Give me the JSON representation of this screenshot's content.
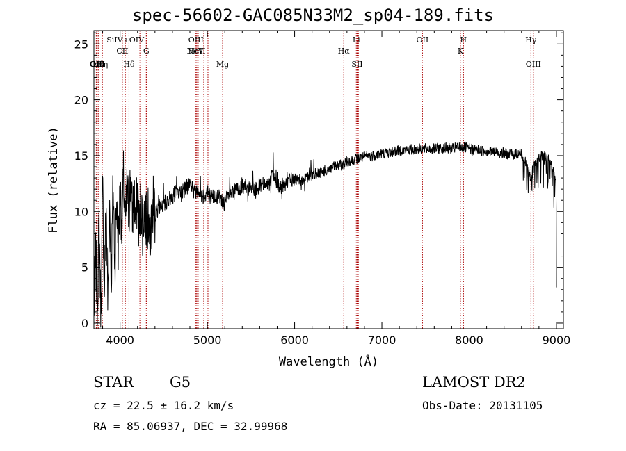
{
  "chart_data": {
    "type": "line",
    "title": "spec-56602-GAC085N33M2_sp04-189.fits",
    "xlabel": "Wavelength (Å)",
    "ylabel": "Flux (relative)",
    "xlim": [
      3700,
      9080
    ],
    "ylim": [
      -0.5,
      26.2
    ],
    "xticks": [
      4000,
      5000,
      6000,
      7000,
      8000,
      9000
    ],
    "yticks": [
      0,
      5,
      10,
      15,
      20,
      25
    ],
    "line_color": "#000000",
    "marker_color": "#aa0000",
    "series": [
      {
        "x": [
          3700,
          3720,
          3740,
          3760,
          3780,
          3800,
          3820,
          3840,
          3860,
          3880,
          3900,
          3920,
          3940,
          3960,
          3980,
          4000,
          4020,
          4040,
          4060,
          4080,
          4100,
          4120,
          4140,
          4160,
          4180,
          4200,
          4220,
          4240,
          4260,
          4280,
          4300,
          4320,
          4340,
          4400,
          4450,
          4500,
          4550,
          4600,
          4650,
          4700,
          4750,
          4800,
          4850,
          4900,
          4950,
          5000,
          5050,
          5100,
          5150,
          5200,
          5250,
          5300,
          5350,
          5400,
          5450,
          5500,
          5550,
          5600,
          5650,
          5700,
          5750,
          5800,
          5850,
          5900,
          5950,
          6000,
          6100,
          6200,
          6300,
          6400,
          6500,
          6560,
          6600,
          6700,
          6800,
          6900,
          7000,
          7100,
          7200,
          7300,
          7400,
          7500,
          7600,
          7700,
          7800,
          7900,
          8000,
          8100,
          8200,
          8300,
          8400,
          8500,
          8600,
          8660,
          8700,
          8750,
          8800,
          8850,
          8900,
          8950,
          9000
        ],
        "y": [
          1.0,
          6.0,
          2.0,
          9.0,
          0.5,
          12.0,
          3.0,
          11.0,
          1.5,
          10.5,
          4.0,
          12.5,
          5.5,
          11.0,
          7.0,
          12.0,
          9.0,
          13.0,
          8.5,
          12.0,
          10.0,
          12.8,
          9.5,
          11.5,
          9.0,
          12.0,
          8.0,
          11.2,
          8.5,
          10.5,
          9.0,
          9.5,
          8.0,
          9.8,
          10.5,
          10.6,
          11.0,
          11.4,
          11.8,
          11.6,
          12.0,
          12.6,
          11.8,
          12.0,
          11.4,
          11.8,
          11.2,
          11.5,
          11.0,
          10.8,
          11.5,
          11.8,
          12.0,
          12.2,
          11.9,
          12.3,
          12.0,
          12.4,
          12.6,
          12.2,
          13.4,
          12.3,
          12.0,
          12.6,
          12.8,
          12.9,
          12.8,
          13.3,
          13.5,
          13.8,
          14.1,
          14.2,
          14.5,
          14.7,
          14.9,
          15.0,
          15.2,
          15.3,
          15.5,
          15.5,
          15.6,
          15.6,
          15.6,
          15.7,
          15.6,
          15.8,
          15.6,
          15.5,
          15.4,
          15.3,
          15.2,
          15.1,
          15.2,
          14.2,
          13.0,
          14.2,
          14.8,
          15.2,
          15.0,
          14.2,
          12.5
        ]
      }
    ],
    "lines": [
      {
        "wl": 3727,
        "label": "OII",
        "row": 3
      },
      {
        "wl": 3737,
        "label": "OIII",
        "row": 3
      },
      {
        "wl": 3750,
        "label": "Hθ",
        "row": 3
      },
      {
        "wl": 3797,
        "label": "Hη",
        "row": 3
      },
      {
        "wl": 4026,
        "label": "CII",
        "row": 2
      },
      {
        "wl": 4060,
        "label": "SiIV+OIV",
        "row": 1
      },
      {
        "wl": 4102,
        "label": "Hδ",
        "row": 3
      },
      {
        "wl": 4227,
        "label": "",
        "row": 0
      },
      {
        "wl": 4300,
        "label": "G",
        "row": 2
      },
      {
        "wl": 4307,
        "label": "",
        "row": 0
      },
      {
        "wl": 4861,
        "label": "NeV",
        "row": 2
      },
      {
        "wl": 4870,
        "label": "OIII",
        "row": 1
      },
      {
        "wl": 4880,
        "label": "HeII",
        "row": 2
      },
      {
        "wl": 4895,
        "label": "",
        "row": 0
      },
      {
        "wl": 4959,
        "label": "",
        "row": 0
      },
      {
        "wl": 5007,
        "label": "",
        "row": 0
      },
      {
        "wl": 5175,
        "label": "Mg",
        "row": 3
      },
      {
        "wl": 6563,
        "label": "Hα",
        "row": 2
      },
      {
        "wl": 6707,
        "label": "Li",
        "row": 1
      },
      {
        "wl": 6717,
        "label": "SII",
        "row": 3
      },
      {
        "wl": 6731,
        "label": "",
        "row": 0
      },
      {
        "wl": 7465,
        "label": "OII",
        "row": 1
      },
      {
        "wl": 7900,
        "label": "K",
        "row": 2
      },
      {
        "wl": 7935,
        "label": "H",
        "row": 1
      },
      {
        "wl": 8708,
        "label": "Hγ",
        "row": 1
      },
      {
        "wl": 8736,
        "label": "OIII",
        "row": 3
      }
    ]
  },
  "info": {
    "object_class": "STAR",
    "subclass": "G5",
    "survey": "LAMOST DR2",
    "cz": "cz = 22.5 ± 16.2 km/s",
    "obs_date": "Obs-Date: 20131105",
    "radec": "RA =  85.06937, DEC =  32.99968"
  }
}
